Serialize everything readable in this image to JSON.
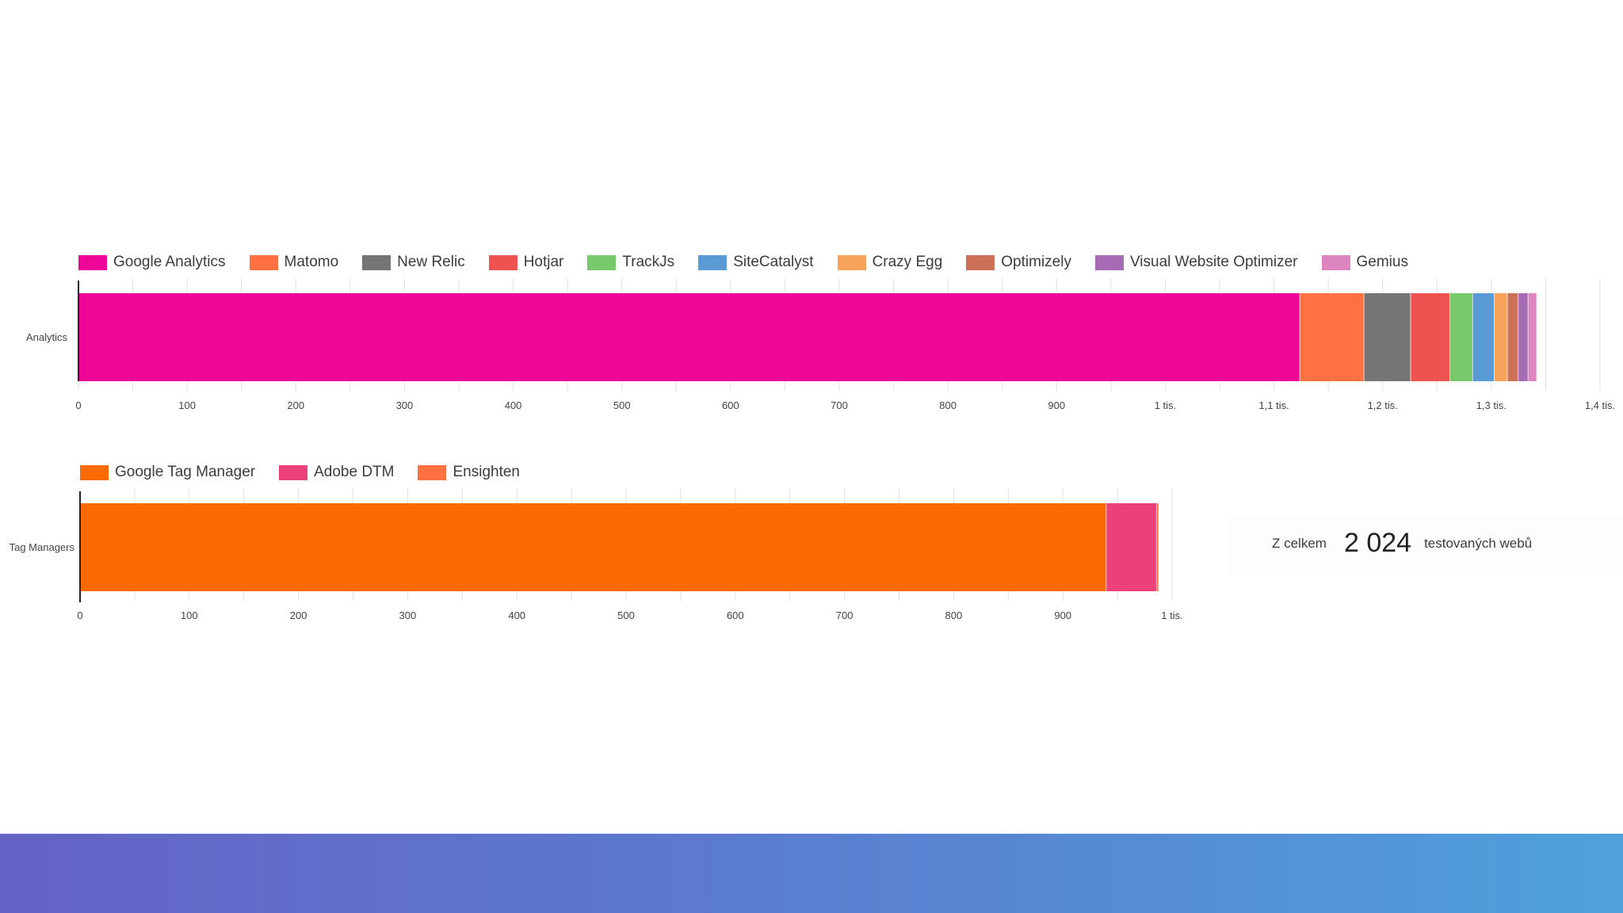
{
  "colors": {
    "background": "#ffffff",
    "axis": "#222222",
    "grid": "#e0e0e0",
    "tick_text": "#444444"
  },
  "chart_data": [
    {
      "type": "bar",
      "orientation": "horizontal",
      "stacked": true,
      "categories": [
        "Analytics"
      ],
      "series": [
        {
          "name": "Google Analytics",
          "values": [
            1124
          ],
          "color": "#ee0698"
        },
        {
          "name": "Matomo",
          "values": [
            59
          ],
          "color": "#ff7043"
        },
        {
          "name": "New Relic",
          "values": [
            43
          ],
          "color": "#757575"
        },
        {
          "name": "Hotjar",
          "values": [
            36
          ],
          "color": "#ef5350"
        },
        {
          "name": "TrackJs",
          "values": [
            21
          ],
          "color": "#78c96b"
        },
        {
          "name": "SiteCatalyst",
          "values": [
            20
          ],
          "color": "#5b9bd5"
        },
        {
          "name": "Crazy Egg",
          "values": [
            12
          ],
          "color": "#f7a35c"
        },
        {
          "name": "Optimizely",
          "values": [
            10
          ],
          "color": "#cd7058"
        },
        {
          "name": "Visual Website Optimizer",
          "values": [
            9
          ],
          "color": "#a66bb5"
        },
        {
          "name": "Gemius",
          "values": [
            8
          ],
          "color": "#dd85be"
        }
      ],
      "xlim": [
        0,
        1400
      ],
      "xticks": [
        0,
        100,
        200,
        300,
        400,
        500,
        600,
        700,
        800,
        900,
        1000,
        1100,
        1200,
        1300,
        1400
      ],
      "xtick_labels": [
        "0",
        "100",
        "200",
        "300",
        "400",
        "500",
        "600",
        "700",
        "800",
        "900",
        "1 tis.",
        "1,1 tis.",
        "1,2 tis.",
        "1,3 tis.",
        "1,4 tis."
      ],
      "grid": true,
      "legend_position": "top-left"
    },
    {
      "type": "bar",
      "orientation": "horizontal",
      "stacked": true,
      "categories": [
        "Tag Managers"
      ],
      "series": [
        {
          "name": "Google Tag Manager",
          "values": [
            940
          ],
          "color": "#f96a03"
        },
        {
          "name": "Adobe DTM",
          "values": [
            46
          ],
          "color": "#ec407a"
        },
        {
          "name": "Ensighten",
          "values": [
            2
          ],
          "color": "#ff7043"
        }
      ],
      "xlim": [
        0,
        1000
      ],
      "xticks": [
        0,
        100,
        200,
        300,
        400,
        500,
        600,
        700,
        800,
        900,
        1000
      ],
      "xtick_labels": [
        "0",
        "100",
        "200",
        "300",
        "400",
        "500",
        "600",
        "700",
        "800",
        "900",
        "1 tis."
      ],
      "grid": true,
      "legend_position": "top-left"
    }
  ],
  "summary": {
    "prefix": "Z celkem",
    "total": "2 024",
    "suffix": "testovaných webů"
  }
}
